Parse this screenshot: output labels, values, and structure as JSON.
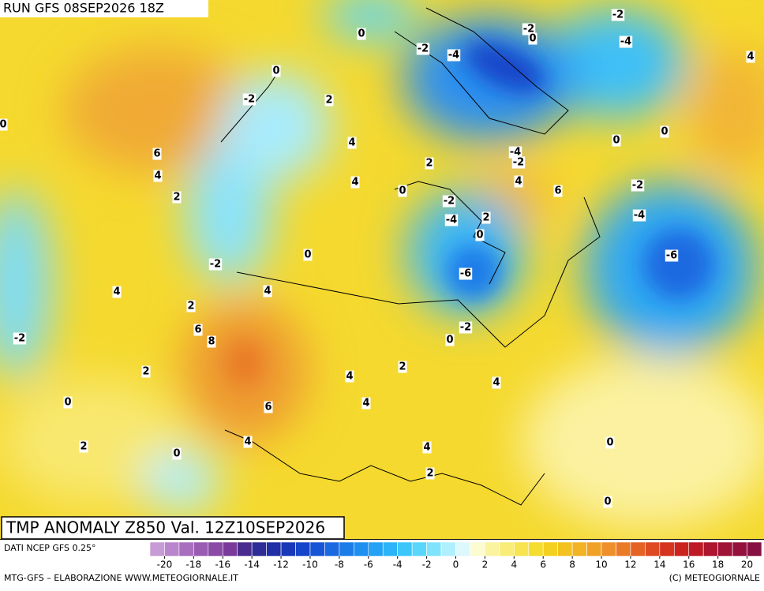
{
  "header": {
    "run": "RUN GFS 08SEP2026 18Z"
  },
  "title": "TMP ANOMALY Z850 Val. 12Z10SEP2026",
  "footer": {
    "source": "DATI NCEP GFS 0.25°",
    "credit_left": "MTG-GFS – ELABORAZIONE WWW.METEOGIORNALE.IT",
    "credit_right": "(C) METEOGIORNALE"
  },
  "colorbar": {
    "ticks": [
      -20,
      -18,
      -16,
      -14,
      -12,
      -10,
      -8,
      -6,
      -4,
      -2,
      0,
      2,
      4,
      6,
      8,
      10,
      12,
      14,
      16,
      18,
      20
    ],
    "colors": [
      "#c79bd6",
      "#b985cc",
      "#a86fbf",
      "#9a5cb3",
      "#8a4aa6",
      "#7a3a9a",
      "#4a2c8f",
      "#2e2c96",
      "#1f2fa6",
      "#1838b8",
      "#1545c8",
      "#1656d6",
      "#1a69e0",
      "#1c7ce8",
      "#1f8ff0",
      "#24a2f5",
      "#2cb4f8",
      "#3cc6fa",
      "#5ad6fb",
      "#80e3fc",
      "#b0effd",
      "#ddf8fd",
      "#fdfbd0",
      "#fbf3a0",
      "#f9ec78",
      "#f7e450",
      "#f5dc30",
      "#f4d020",
      "#f3c220",
      "#f2b325",
      "#f0a228",
      "#ee902a",
      "#ea7a28",
      "#e56225",
      "#de4a22",
      "#d5341f",
      "#cb241f",
      "#bd1a26",
      "#ae152e",
      "#a01236",
      "#93113c",
      "#861042"
    ]
  },
  "contour_labels": [
    0,
    -2,
    -4,
    -2,
    0,
    -2,
    -4,
    4,
    0,
    -2,
    2,
    4,
    2,
    0,
    6,
    4,
    2,
    4,
    0,
    -2,
    -4,
    2,
    0,
    -4,
    -2,
    4,
    6,
    0,
    0,
    -2,
    -4,
    -6,
    0,
    -2,
    -6,
    4,
    4,
    2,
    6,
    8,
    -2,
    -2,
    0,
    2,
    4,
    4,
    2,
    0,
    4,
    6,
    4,
    4,
    0,
    2,
    0,
    2,
    0
  ]
}
